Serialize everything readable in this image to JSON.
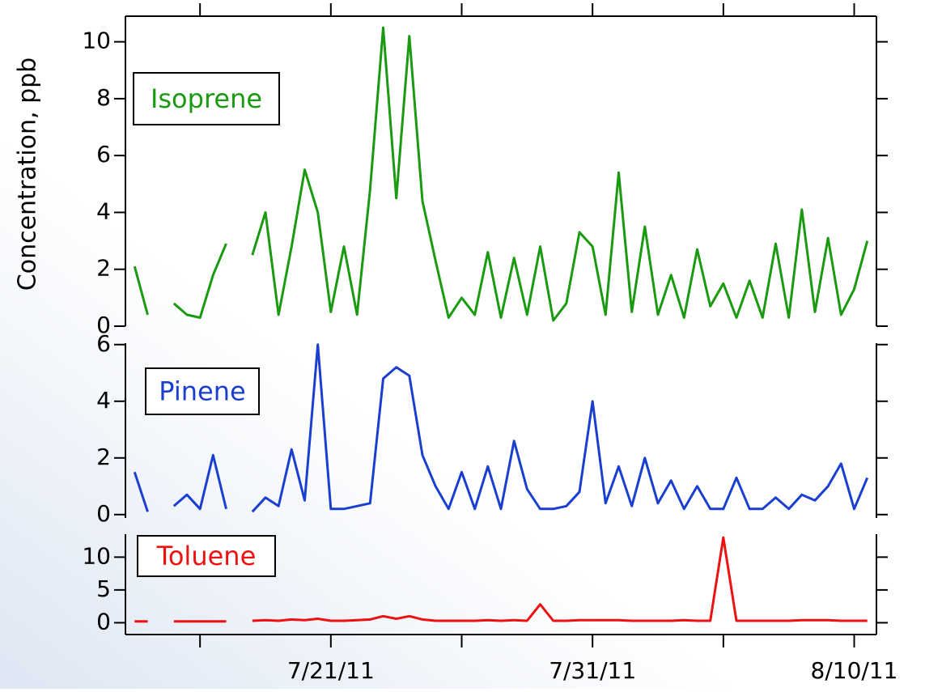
{
  "chart_data": [
    {
      "type": "line",
      "ylabel": "Concentration, ppb",
      "label": "Isoprene",
      "color": "#1a9a10",
      "ylim": [
        0,
        10.9
      ],
      "yticks": [
        0,
        2,
        4,
        6,
        8,
        10
      ],
      "x": [
        13.5,
        14,
        14.5,
        15,
        15.5,
        16,
        16.5,
        17,
        17.5,
        18,
        18.5,
        19,
        19.5,
        20,
        20.5,
        21,
        21.5,
        22,
        22.5,
        23,
        23.5,
        24,
        24.5,
        25,
        25.5,
        26,
        26.5,
        27,
        27.5,
        28,
        28.5,
        29,
        29.5,
        30,
        30.5,
        31,
        31.5,
        32,
        32.5,
        33,
        33.5,
        34,
        34.5,
        35,
        35.5,
        36,
        36.5,
        37,
        37.5,
        38,
        38.5,
        39,
        39.5,
        40,
        40.5,
        41,
        41.5
      ],
      "values": [
        2.1,
        0.4,
        null,
        0.8,
        0.4,
        0.3,
        1.8,
        2.9,
        null,
        2.5,
        4.0,
        0.4,
        2.8,
        5.5,
        4.0,
        0.5,
        2.8,
        0.4,
        4.8,
        10.5,
        4.5,
        10.2,
        4.4,
        2.3,
        0.3,
        1.0,
        0.4,
        2.6,
        0.3,
        2.4,
        0.4,
        2.8,
        0.2,
        0.8,
        3.3,
        2.8,
        0.4,
        5.4,
        0.5,
        3.5,
        0.4,
        1.8,
        0.3,
        2.7,
        0.7,
        1.5,
        0.3,
        1.6,
        0.3,
        2.9,
        0.3,
        4.1,
        0.5,
        3.1,
        0.4,
        1.3,
        3.0
      ]
    },
    {
      "type": "line",
      "label": "Pinene",
      "color": "#1a3fd0",
      "ylim": [
        -0.12,
        6.05
      ],
      "yticks": [
        0,
        2,
        4,
        6
      ],
      "x": [
        13.5,
        14,
        14.5,
        15,
        15.5,
        16,
        16.5,
        17,
        17.5,
        18,
        18.5,
        19,
        19.5,
        20,
        20.5,
        21,
        21.5,
        22,
        22.5,
        23,
        23.5,
        24,
        24.5,
        25,
        25.5,
        26,
        26.5,
        27,
        27.5,
        28,
        28.5,
        29,
        29.5,
        30,
        30.5,
        31,
        31.5,
        32,
        32.5,
        33,
        33.5,
        34,
        34.5,
        35,
        35.5,
        36,
        36.5,
        37,
        37.5,
        38,
        38.5,
        39,
        39.5,
        40,
        40.5,
        41,
        41.5
      ],
      "values": [
        1.5,
        0.1,
        null,
        0.3,
        0.7,
        0.2,
        2.1,
        0.2,
        null,
        0.1,
        0.6,
        0.3,
        2.3,
        0.5,
        6.0,
        0.2,
        0.2,
        0.3,
        0.4,
        4.8,
        5.2,
        4.9,
        2.1,
        1.0,
        0.2,
        1.5,
        0.2,
        1.7,
        0.2,
        2.6,
        0.9,
        0.2,
        0.2,
        0.3,
        0.8,
        4.0,
        0.4,
        1.7,
        0.3,
        2.0,
        0.4,
        1.2,
        0.2,
        1.0,
        0.2,
        0.2,
        1.3,
        0.2,
        0.2,
        0.6,
        0.2,
        0.7,
        0.5,
        1.0,
        1.8,
        0.2,
        1.3
      ]
    },
    {
      "type": "line",
      "label": "Toluene",
      "color": "#ee1111",
      "ylim": [
        -1.8,
        13.5
      ],
      "yticks": [
        0,
        5,
        10
      ],
      "xlim": [
        13.15,
        41.85
      ],
      "xticks": [
        {
          "value": 21,
          "label": "7/21/11"
        },
        {
          "value": 31,
          "label": "7/31/11"
        },
        {
          "value": 41,
          "label": "8/10/11"
        }
      ],
      "xminor": [
        16,
        26,
        36
      ],
      "x": [
        13.5,
        14,
        14.5,
        15,
        15.5,
        16,
        16.5,
        17,
        17.5,
        18,
        18.5,
        19,
        19.5,
        20,
        20.5,
        21,
        21.5,
        22,
        22.5,
        23,
        23.5,
        24,
        24.5,
        25,
        25.5,
        26,
        26.5,
        27,
        27.5,
        28,
        28.5,
        29,
        29.5,
        30,
        30.5,
        31,
        31.5,
        32,
        32.5,
        33,
        33.5,
        34,
        34.5,
        35,
        35.5,
        36,
        36.5,
        37,
        37.5,
        38,
        38.5,
        39,
        39.5,
        40,
        40.5,
        41,
        41.5
      ],
      "values": [
        0.2,
        0.2,
        null,
        0.2,
        0.2,
        0.2,
        0.2,
        0.2,
        null,
        0.3,
        0.4,
        0.3,
        0.5,
        0.4,
        0.6,
        0.3,
        0.3,
        0.4,
        0.5,
        1.0,
        0.6,
        1.0,
        0.5,
        0.3,
        0.3,
        0.3,
        0.3,
        0.4,
        0.3,
        0.4,
        0.3,
        2.8,
        0.3,
        0.3,
        0.4,
        0.4,
        0.4,
        0.4,
        0.3,
        0.3,
        0.3,
        0.3,
        0.4,
        0.3,
        0.3,
        13.0,
        0.3,
        0.3,
        0.3,
        0.3,
        0.3,
        0.4,
        0.4,
        0.4,
        0.3,
        0.3,
        0.3
      ]
    }
  ]
}
